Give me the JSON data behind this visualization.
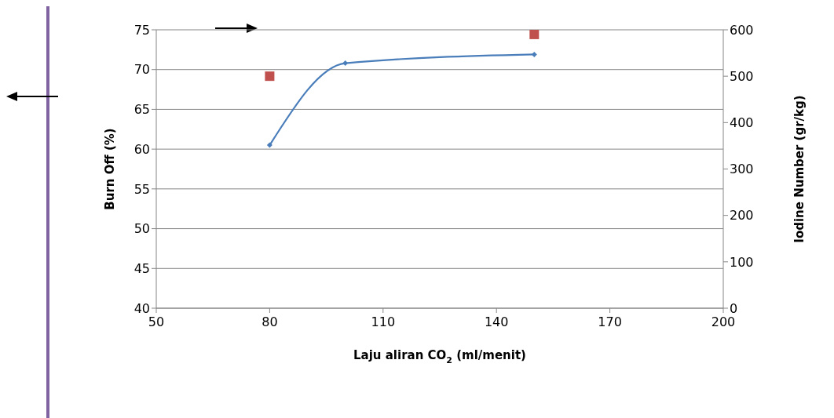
{
  "chart_data": {
    "type": "line",
    "xlabel": "Laju aliran CO$_{2}$ (ml/menit)",
    "ylabel": "Burn Off (%)",
    "y2label": "Iodine Number (gr/kg)",
    "series": [
      {
        "type": "line",
        "color": "#4a7ebb",
        "x": [
          80,
          100,
          150
        ],
        "values": [
          60.5,
          70.8,
          71.9
        ],
        "marker": "diamond"
      },
      {
        "type": "scatter",
        "color": "#c0504d",
        "x": [
          80,
          150
        ],
        "values": [
          500,
          590
        ],
        "axis": "y2",
        "marker": "square"
      }
    ],
    "xlim": [
      50,
      200
    ],
    "xticks": [
      50,
      80,
      110,
      140,
      170,
      200
    ],
    "ylim": [
      40,
      75
    ],
    "yticks": [
      40,
      45,
      50,
      55,
      60,
      65,
      70,
      75
    ],
    "y2lim": [
      0,
      600
    ],
    "y2ticks": [
      0,
      100,
      200,
      300,
      400,
      500,
      600
    ],
    "grid": "y"
  }
}
